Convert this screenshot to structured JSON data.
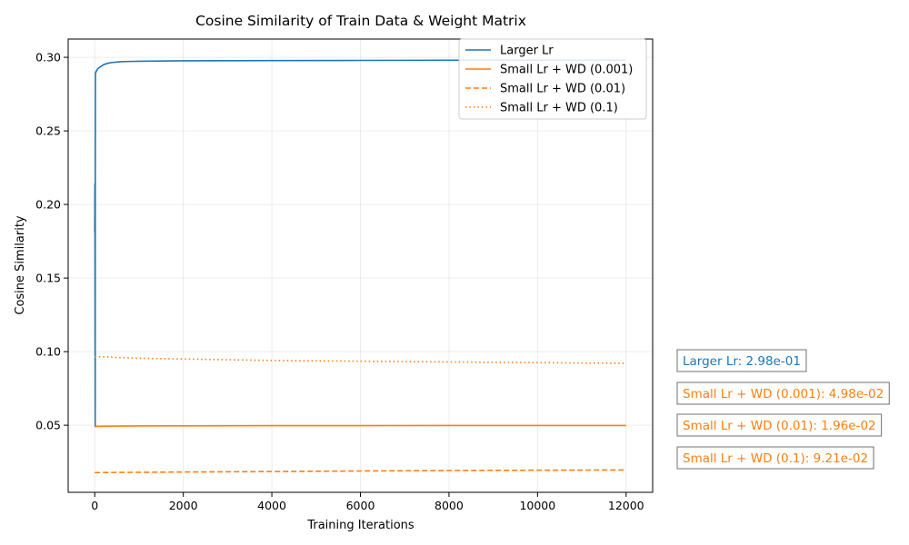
{
  "chart_data": {
    "type": "line",
    "title": "Cosine Similarity of Train Data & Weight Matrix",
    "xlabel": "Training Iterations",
    "ylabel": "Cosine Similarity",
    "xlim": [
      -600,
      12600
    ],
    "ylim": [
      0.0044,
      0.3124
    ],
    "xticks": [
      0,
      2000,
      4000,
      6000,
      8000,
      10000,
      12000
    ],
    "xtick_labels": [
      "0",
      "2000",
      "4000",
      "6000",
      "8000",
      "10000",
      "12000"
    ],
    "yticks": [
      0.05,
      0.1,
      0.15,
      0.2,
      0.25,
      0.3
    ],
    "ytick_labels": [
      "0.05",
      "0.10",
      "0.15",
      "0.20",
      "0.25",
      "0.30"
    ],
    "grid": true,
    "legend_position": "top-right",
    "series": [
      {
        "name": "Larger Lr",
        "color": "#1f77b4",
        "linestyle": "solid",
        "x": [
          0,
          3,
          6,
          10,
          12,
          15,
          20,
          30,
          40,
          50,
          60,
          80,
          100,
          150,
          200,
          300,
          400,
          600,
          800,
          1000,
          1500,
          2000,
          3000,
          4000,
          6000,
          8000,
          10000,
          12000
        ],
        "y": [
          0.181,
          0.214,
          0.16,
          0.049,
          0.21,
          0.288,
          0.29,
          0.29,
          0.291,
          0.291,
          0.292,
          0.2925,
          0.293,
          0.294,
          0.295,
          0.296,
          0.2965,
          0.297,
          0.2972,
          0.2973,
          0.2975,
          0.2976,
          0.2977,
          0.2978,
          0.2979,
          0.298,
          0.298,
          0.298
        ]
      },
      {
        "name": "Small Lr + WD (0.001)",
        "color": "#ff7f0e",
        "linestyle": "solid",
        "x": [
          0,
          500,
          1000,
          2000,
          4000,
          6000,
          8000,
          10000,
          12000
        ],
        "y": [
          0.0492,
          0.0494,
          0.0495,
          0.0496,
          0.0497,
          0.0497,
          0.0498,
          0.0498,
          0.0498
        ]
      },
      {
        "name": "Small Lr + WD (0.01)",
        "color": "#ff7f0e",
        "linestyle": "dashed",
        "x": [
          0,
          2000,
          4000,
          6000,
          8000,
          10000,
          12000
        ],
        "y": [
          0.0178,
          0.0182,
          0.0185,
          0.0189,
          0.0192,
          0.0194,
          0.0196
        ]
      },
      {
        "name": "Small Lr + WD (0.1)",
        "color": "#ff7f0e",
        "linestyle": "dotted",
        "x": [
          0,
          250,
          500,
          1000,
          2000,
          3000,
          4000,
          6000,
          8000,
          10000,
          12000
        ],
        "y": [
          0.0965,
          0.0965,
          0.096,
          0.0955,
          0.095,
          0.0945,
          0.094,
          0.0935,
          0.093,
          0.0925,
          0.0921
        ]
      }
    ],
    "annotations": [
      {
        "text": "Larger Lr: 2.98e-01",
        "color": "#1f77b4"
      },
      {
        "text": "Small Lr + WD (0.001): 4.98e-02",
        "color": "#ff7f0e"
      },
      {
        "text": "Small Lr + WD (0.01): 1.96e-02",
        "color": "#ff7f0e"
      },
      {
        "text": "Small Lr + WD (0.1): 9.21e-02",
        "color": "#ff7f0e"
      }
    ]
  }
}
